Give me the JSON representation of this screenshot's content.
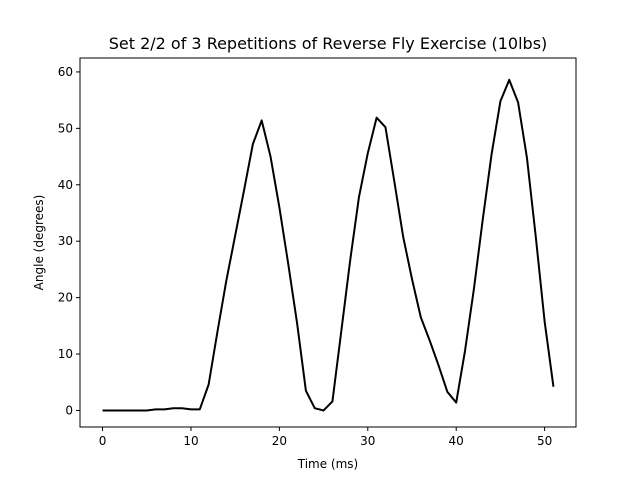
{
  "chart_data": {
    "type": "line",
    "title": "Set 2/2 of 3 Repetitions of Reverse Fly Exercise (10lbs)",
    "xlabel": "Time (ms)",
    "ylabel": "Angle (degrees)",
    "xlim": [
      -2.55,
      53.55
    ],
    "ylim": [
      -2.93,
      62.47
    ],
    "xticks": [
      0,
      10,
      20,
      30,
      40,
      50
    ],
    "yticks": [
      0,
      10,
      20,
      30,
      40,
      50,
      60
    ],
    "xtick_labels": [
      "0",
      "10",
      "20",
      "30",
      "40",
      "50"
    ],
    "ytick_labels": [
      "0",
      "10",
      "20",
      "30",
      "40",
      "50",
      "60"
    ],
    "grid": false,
    "legend": "none",
    "series": [
      {
        "color": "#000000",
        "x": [
          0,
          1,
          2,
          3,
          4,
          5,
          6,
          7,
          8,
          9,
          10,
          11,
          12,
          13,
          14,
          15,
          16,
          17,
          18,
          19,
          20,
          21,
          22,
          23,
          24,
          25,
          26,
          27,
          28,
          29,
          30,
          31,
          32,
          33,
          34,
          35,
          36,
          37,
          38,
          39,
          40,
          41,
          42,
          43,
          44,
          45,
          46,
          47,
          48,
          49,
          50,
          51
        ],
        "y": [
          0,
          0,
          0,
          0,
          0,
          0,
          0.2,
          0.2,
          0.4,
          0.4,
          0.2,
          0.2,
          4.6,
          14.0,
          23.0,
          31.0,
          39.0,
          47.2,
          51.4,
          45.0,
          36.0,
          26.0,
          15.5,
          3.5,
          0.4,
          0,
          1.6,
          14.0,
          26.5,
          37.8,
          45.6,
          51.9,
          50.2,
          40.6,
          30.8,
          23.3,
          16.5,
          12.4,
          8.0,
          3.3,
          1.4,
          10.6,
          21.5,
          33.8,
          45.4,
          54.8,
          58.6,
          54.6,
          44.8,
          30.8,
          15.8,
          4.2
        ]
      }
    ]
  }
}
